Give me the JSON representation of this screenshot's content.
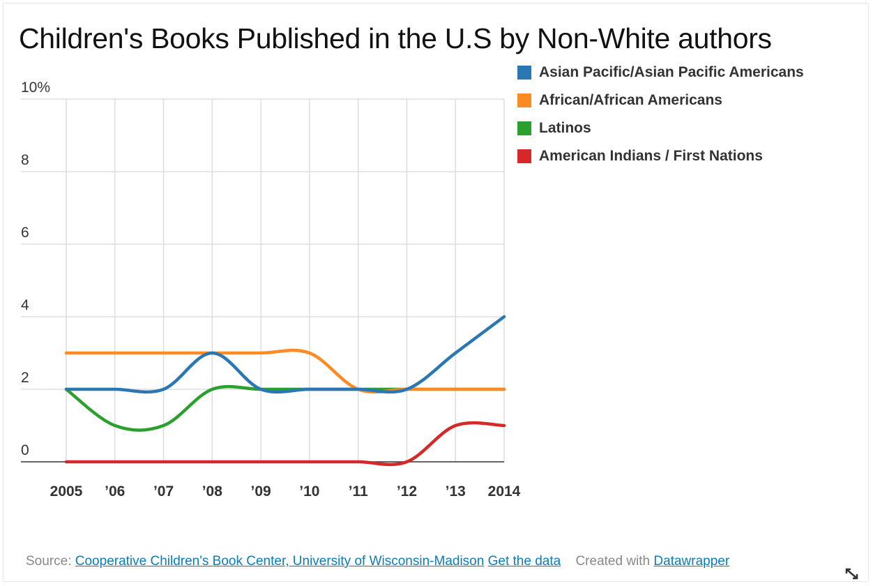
{
  "title": "Children's Books Published in the U.S by Non-White authors",
  "legend": [
    {
      "label": "Asian Pacific/Asian Pacific Americans",
      "color": "#2a77b4"
    },
    {
      "label": "African/African Americans",
      "color": "#fd8a22"
    },
    {
      "label": "Latinos",
      "color": "#2ba02e"
    },
    {
      "label": "American Indians / First Nations",
      "color": "#d62829"
    }
  ],
  "footer": {
    "source_prefix": "Source:",
    "source_link": "Cooperative Children's Book Center, University of Wisconsin-Madison",
    "get_data": "Get the data",
    "created_prefix": "Created with",
    "created_link": "Datawrapper"
  },
  "chart_data": {
    "type": "line",
    "x": [
      2005,
      2006,
      2007,
      2008,
      2009,
      2010,
      2011,
      2012,
      2013,
      2014
    ],
    "x_tick_labels": [
      "2005",
      "’06",
      "’07",
      "’08",
      "’09",
      "’10",
      "’11",
      "’12",
      "’13",
      "2014"
    ],
    "y_tick_labels": [
      "10%",
      "8",
      "6",
      "4",
      "2",
      "0"
    ],
    "y_ticks": [
      10,
      8,
      6,
      4,
      2,
      0
    ],
    "ylim": [
      0,
      10
    ],
    "grid": true,
    "series": [
      {
        "name": "Asian Pacific/Asian Pacific Americans",
        "color": "#2a77b4",
        "values": [
          2,
          2,
          2,
          3,
          2,
          2,
          2,
          2,
          3,
          4
        ]
      },
      {
        "name": "African/African Americans",
        "color": "#fd8a22",
        "values": [
          3,
          3,
          3,
          3,
          3,
          3,
          2,
          2,
          2,
          2
        ]
      },
      {
        "name": "Latinos",
        "color": "#2ba02e",
        "values": [
          2,
          1,
          1,
          2,
          2,
          2,
          2,
          2,
          2,
          2
        ]
      },
      {
        "name": "American Indians / First Nations",
        "color": "#d62829",
        "values": [
          0,
          0,
          0,
          0,
          0,
          0,
          0,
          0,
          1,
          1
        ]
      }
    ]
  }
}
